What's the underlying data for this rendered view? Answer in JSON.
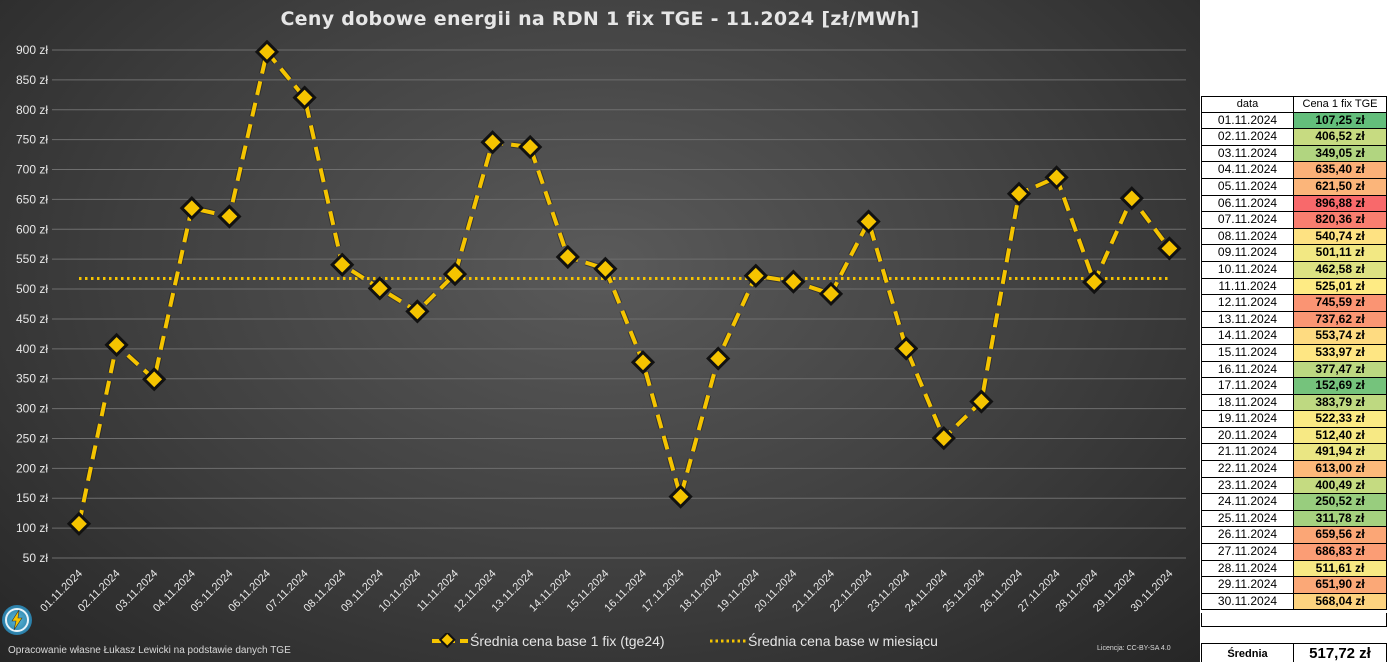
{
  "chart_data": {
    "type": "line",
    "title": "Ceny dobowe energii na RDN 1 fix TGE - 11.2024 [zł/MWh]",
    "ylim": [
      50,
      900
    ],
    "y_tick_labels": [
      "900 zł",
      "850 zł",
      "800 zł",
      "750 zł",
      "700 zł",
      "650 zł",
      "600 zł",
      "550 zł",
      "500 zł",
      "450 zł",
      "400 zł",
      "350 zł",
      "300 zł",
      "250 zł",
      "200 zł",
      "150 zł",
      "100 zł",
      "50 zł"
    ],
    "y_tick_values": [
      900,
      850,
      800,
      750,
      700,
      650,
      600,
      550,
      500,
      450,
      400,
      350,
      300,
      250,
      200,
      150,
      100,
      50
    ],
    "categories": [
      "01.11.2024",
      "02.11.2024",
      "03.11.2024",
      "04.11.2024",
      "05.11.2024",
      "06.11.2024",
      "07.11.2024",
      "08.11.2024",
      "09.11.2024",
      "10.11.2024",
      "11.11.2024",
      "12.11.2024",
      "13.11.2024",
      "14.11.2024",
      "15.11.2024",
      "16.11.2024",
      "17.11.2024",
      "18.11.2024",
      "19.11.2024",
      "20.11.2024",
      "21.11.2024",
      "22.11.2024",
      "23.11.2024",
      "24.11.2024",
      "25.11.2024",
      "26.11.2024",
      "27.11.2024",
      "28.11.2024",
      "29.11.2024",
      "30.11.2024"
    ],
    "grid": true,
    "legend_position": "bottom",
    "series": [
      {
        "name": "Średnia cena base 1 fix (tge24)",
        "color": "#f5c400",
        "values": [
          107.25,
          406.52,
          349.05,
          635.4,
          621.5,
          896.88,
          820.36,
          540.74,
          501.11,
          462.58,
          525.01,
          745.59,
          737.62,
          553.74,
          533.97,
          377.47,
          152.69,
          383.79,
          522.33,
          512.4,
          491.94,
          613.0,
          400.49,
          250.52,
          311.78,
          659.56,
          686.83,
          511.61,
          651.9,
          568.04
        ]
      },
      {
        "name": "Średnia cena base w miesiącu",
        "color": "#f5c400",
        "value": 517.72
      }
    ]
  },
  "table": {
    "header_date": "data",
    "header_price": "Cena 1 fix TGE",
    "rows": [
      {
        "date": "01.11.2024",
        "price": "107,25 zł",
        "color": "#63be7b"
      },
      {
        "date": "02.11.2024",
        "price": "406,52 zł",
        "color": "#c7db81"
      },
      {
        "date": "03.11.2024",
        "price": "349,05 zł",
        "color": "#b1d580"
      },
      {
        "date": "04.11.2024",
        "price": "635,40 zł",
        "color": "#fbb078"
      },
      {
        "date": "05.11.2024",
        "price": "621,50 zł",
        "color": "#fbb57a"
      },
      {
        "date": "06.11.2024",
        "price": "896,88 zł",
        "color": "#f8696b"
      },
      {
        "date": "07.11.2024",
        "price": "820,36 zł",
        "color": "#f97e6f"
      },
      {
        "date": "08.11.2024",
        "price": "540,74 zł",
        "color": "#fee282"
      },
      {
        "date": "09.11.2024",
        "price": "501,11 zł",
        "color": "#f2e883"
      },
      {
        "date": "10.11.2024",
        "price": "462,58 zł",
        "color": "#dde282"
      },
      {
        "date": "11.11.2024",
        "price": "525,01 zł",
        "color": "#feeb84"
      },
      {
        "date": "12.11.2024",
        "price": "745,59 zł",
        "color": "#fa9473"
      },
      {
        "date": "13.11.2024",
        "price": "737,62 zł",
        "color": "#fa9673"
      },
      {
        "date": "14.11.2024",
        "price": "553,74 zł",
        "color": "#fedb81"
      },
      {
        "date": "15.11.2024",
        "price": "533,97 zł",
        "color": "#fee683"
      },
      {
        "date": "16.11.2024",
        "price": "377,47 zł",
        "color": "#bcd881"
      },
      {
        "date": "17.11.2024",
        "price": "152,69 zł",
        "color": "#75c37c"
      },
      {
        "date": "18.11.2024",
        "price": "383,79 zł",
        "color": "#bed981"
      },
      {
        "date": "19.11.2024",
        "price": "522,33 zł",
        "color": "#fbea84"
      },
      {
        "date": "20.11.2024",
        "price": "512,40 zł",
        "color": "#f7e984"
      },
      {
        "date": "21.11.2024",
        "price": "491,94 zł",
        "color": "#eae683"
      },
      {
        "date": "22.11.2024",
        "price": "613,00 zł",
        "color": "#fcb97a"
      },
      {
        "date": "23.11.2024",
        "price": "400,49 zł",
        "color": "#c5db81"
      },
      {
        "date": "24.11.2024",
        "price": "250,52 zł",
        "color": "#98cd7e"
      },
      {
        "date": "25.11.2024",
        "price": "311,78 zł",
        "color": "#a5d17f"
      },
      {
        "date": "26.11.2024",
        "price": "659,56 zł",
        "color": "#fba676"
      },
      {
        "date": "27.11.2024",
        "price": "686,83 zł",
        "color": "#fb9d75"
      },
      {
        "date": "28.11.2024",
        "price": "511,61 zł",
        "color": "#f7e984"
      },
      {
        "date": "29.11.2024",
        "price": "651,90 zł",
        "color": "#fba877"
      },
      {
        "date": "30.11.2024",
        "price": "568,04 zł",
        "color": "#fdd37f"
      }
    ],
    "average_label": "Średnia",
    "average_value": "517,72 zł"
  },
  "footer": {
    "credit": "Opracowanie własne Łukasz Lewicki na podstawie danych TGE",
    "license": "Licencja: CC-BY-SA 4.0",
    "logo_icon": "lightning-logo-icon"
  }
}
